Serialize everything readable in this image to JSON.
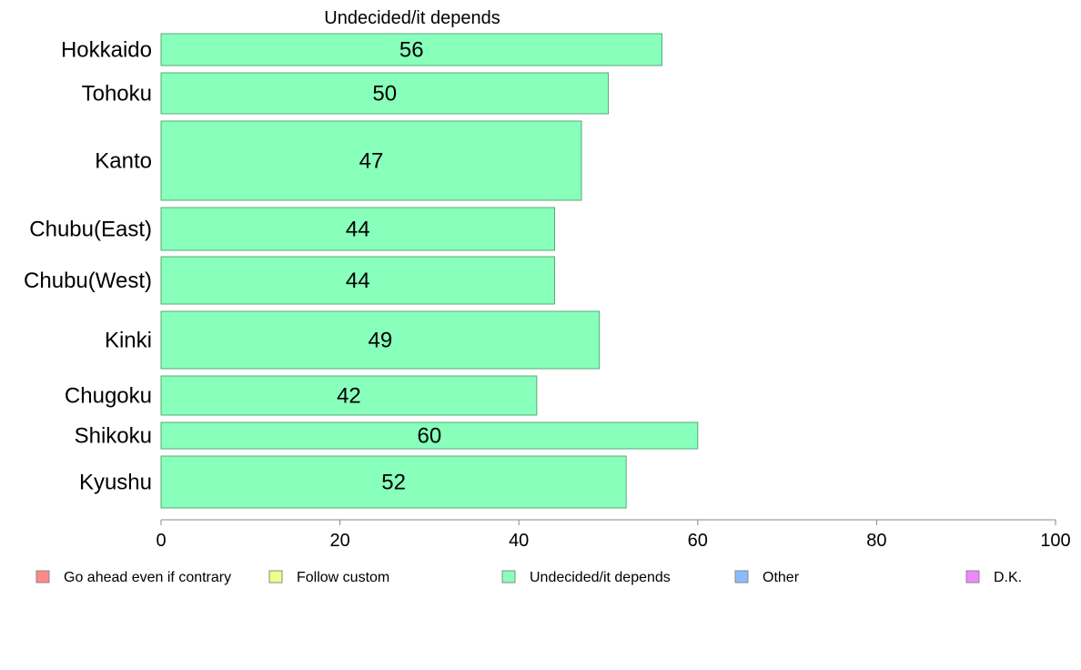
{
  "chart_data": {
    "type": "bar",
    "orientation": "horizontal",
    "title": "Undecided/it depends",
    "categories": [
      "Hokkaido",
      "Tohoku",
      "Kanto",
      "Chubu(East)",
      "Chubu(West)",
      "Kinki",
      "Chugoku",
      "Shikoku",
      "Kyushu"
    ],
    "series": [
      {
        "name": "Undecided/it depends",
        "color": "#88ffbb",
        "values": [
          56,
          50,
          47,
          44,
          44,
          49,
          42,
          60,
          52
        ]
      }
    ],
    "data_labels": [
      "56",
      "50",
      "47",
      "44",
      "44",
      "49",
      "42",
      "60",
      "52"
    ],
    "xlim": [
      0,
      100
    ],
    "xticks": [
      0,
      20,
      40,
      60,
      80,
      100
    ],
    "xtick_labels": [
      "0",
      "20",
      "40",
      "60",
      "80",
      "100"
    ],
    "grid": false,
    "legend_position": "bottom",
    "legend": [
      {
        "label": "Go ahead even if contrary",
        "color": "#ff8888"
      },
      {
        "label": "Follow custom",
        "color": "#eeff88"
      },
      {
        "label": "Undecided/it depends",
        "color": "#88ffbb"
      },
      {
        "label": "Other",
        "color": "#88bbff"
      },
      {
        "label": "D.K.",
        "color": "#ee88ff"
      }
    ]
  }
}
